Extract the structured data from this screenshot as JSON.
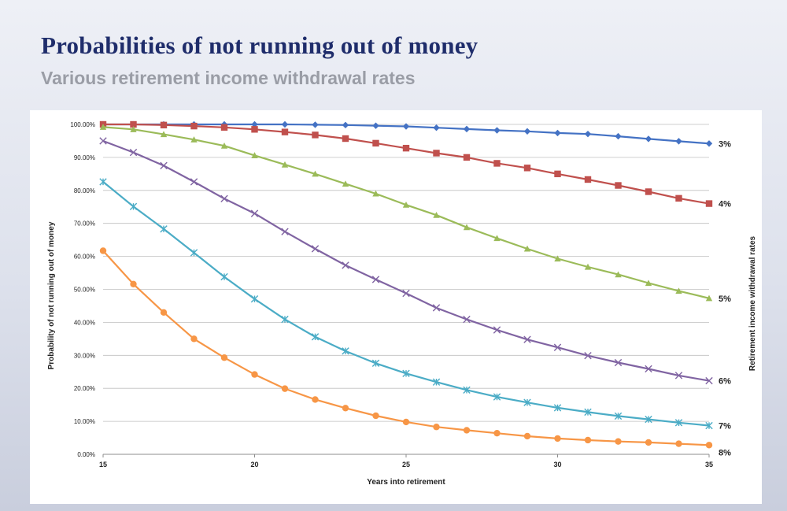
{
  "slide": {
    "title": "Probabilities of not running out of money",
    "subtitle": "Various retirement income withdrawal rates"
  },
  "chart_data": {
    "type": "line",
    "xlabel": "Years into retirement",
    "ylabel": "Probability of not running out of money",
    "y2label": "Retirement income withdrawal rates",
    "xlim": [
      15,
      35
    ],
    "ylim": [
      0,
      100
    ],
    "x_ticks": [
      15,
      20,
      25,
      30,
      35
    ],
    "y_ticks": [
      "0.00%",
      "10.00%",
      "20.00%",
      "30.00%",
      "40.00%",
      "50.00%",
      "60.00%",
      "70.00%",
      "80.00%",
      "90.00%",
      "100.00%"
    ],
    "grid": "horizontal",
    "legend": "right",
    "x": [
      15,
      16,
      17,
      18,
      19,
      20,
      21,
      22,
      23,
      24,
      25,
      26,
      27,
      28,
      29,
      30,
      31,
      32,
      33,
      34,
      35
    ],
    "series": [
      {
        "name": "3%",
        "color": "#4472c4",
        "marker": "diamond",
        "values": [
          100,
          100,
          100,
          100,
          100,
          100,
          100,
          99.9,
          99.8,
          99.6,
          99.4,
          99.0,
          98.6,
          98.2,
          97.9,
          97.4,
          97.1,
          96.4,
          95.6,
          94.9,
          94.2
        ]
      },
      {
        "name": "4%",
        "color": "#c0504d",
        "marker": "square",
        "values": [
          100,
          100,
          99.8,
          99.5,
          99.1,
          98.5,
          97.7,
          96.8,
          95.7,
          94.3,
          92.8,
          91.3,
          90.0,
          88.2,
          86.8,
          85.0,
          83.3,
          81.5,
          79.6,
          77.6,
          76.0
        ]
      },
      {
        "name": "5%",
        "color": "#9bbb59",
        "marker": "triangle",
        "values": [
          99.2,
          98.5,
          97.0,
          95.4,
          93.5,
          90.6,
          87.8,
          85.0,
          82.0,
          79.0,
          75.6,
          72.5,
          68.8,
          65.5,
          62.3,
          59.3,
          56.8,
          54.5,
          51.9,
          49.5,
          47.3
        ]
      },
      {
        "name": "6%",
        "color": "#8064a2",
        "marker": "x",
        "values": [
          95.0,
          91.5,
          87.5,
          82.6,
          77.5,
          73.0,
          67.5,
          62.3,
          57.3,
          53.0,
          48.8,
          44.4,
          40.9,
          37.7,
          34.8,
          32.4,
          29.9,
          27.8,
          25.9,
          23.9,
          22.3
        ]
      },
      {
        "name": "7%",
        "color": "#4bacc6",
        "marker": "star",
        "values": [
          82.6,
          75.1,
          68.3,
          61.1,
          53.8,
          47.1,
          40.9,
          35.6,
          31.3,
          27.6,
          24.5,
          21.9,
          19.5,
          17.4,
          15.7,
          14.1,
          12.8,
          11.6,
          10.6,
          9.6,
          8.7
        ]
      },
      {
        "name": "8%",
        "color": "#f79646",
        "marker": "circle",
        "values": [
          61.7,
          51.6,
          43.0,
          35.0,
          29.3,
          24.2,
          19.9,
          16.6,
          14.0,
          11.7,
          9.8,
          8.3,
          7.3,
          6.4,
          5.5,
          4.8,
          4.3,
          3.9,
          3.6,
          3.2,
          2.8
        ]
      }
    ]
  }
}
